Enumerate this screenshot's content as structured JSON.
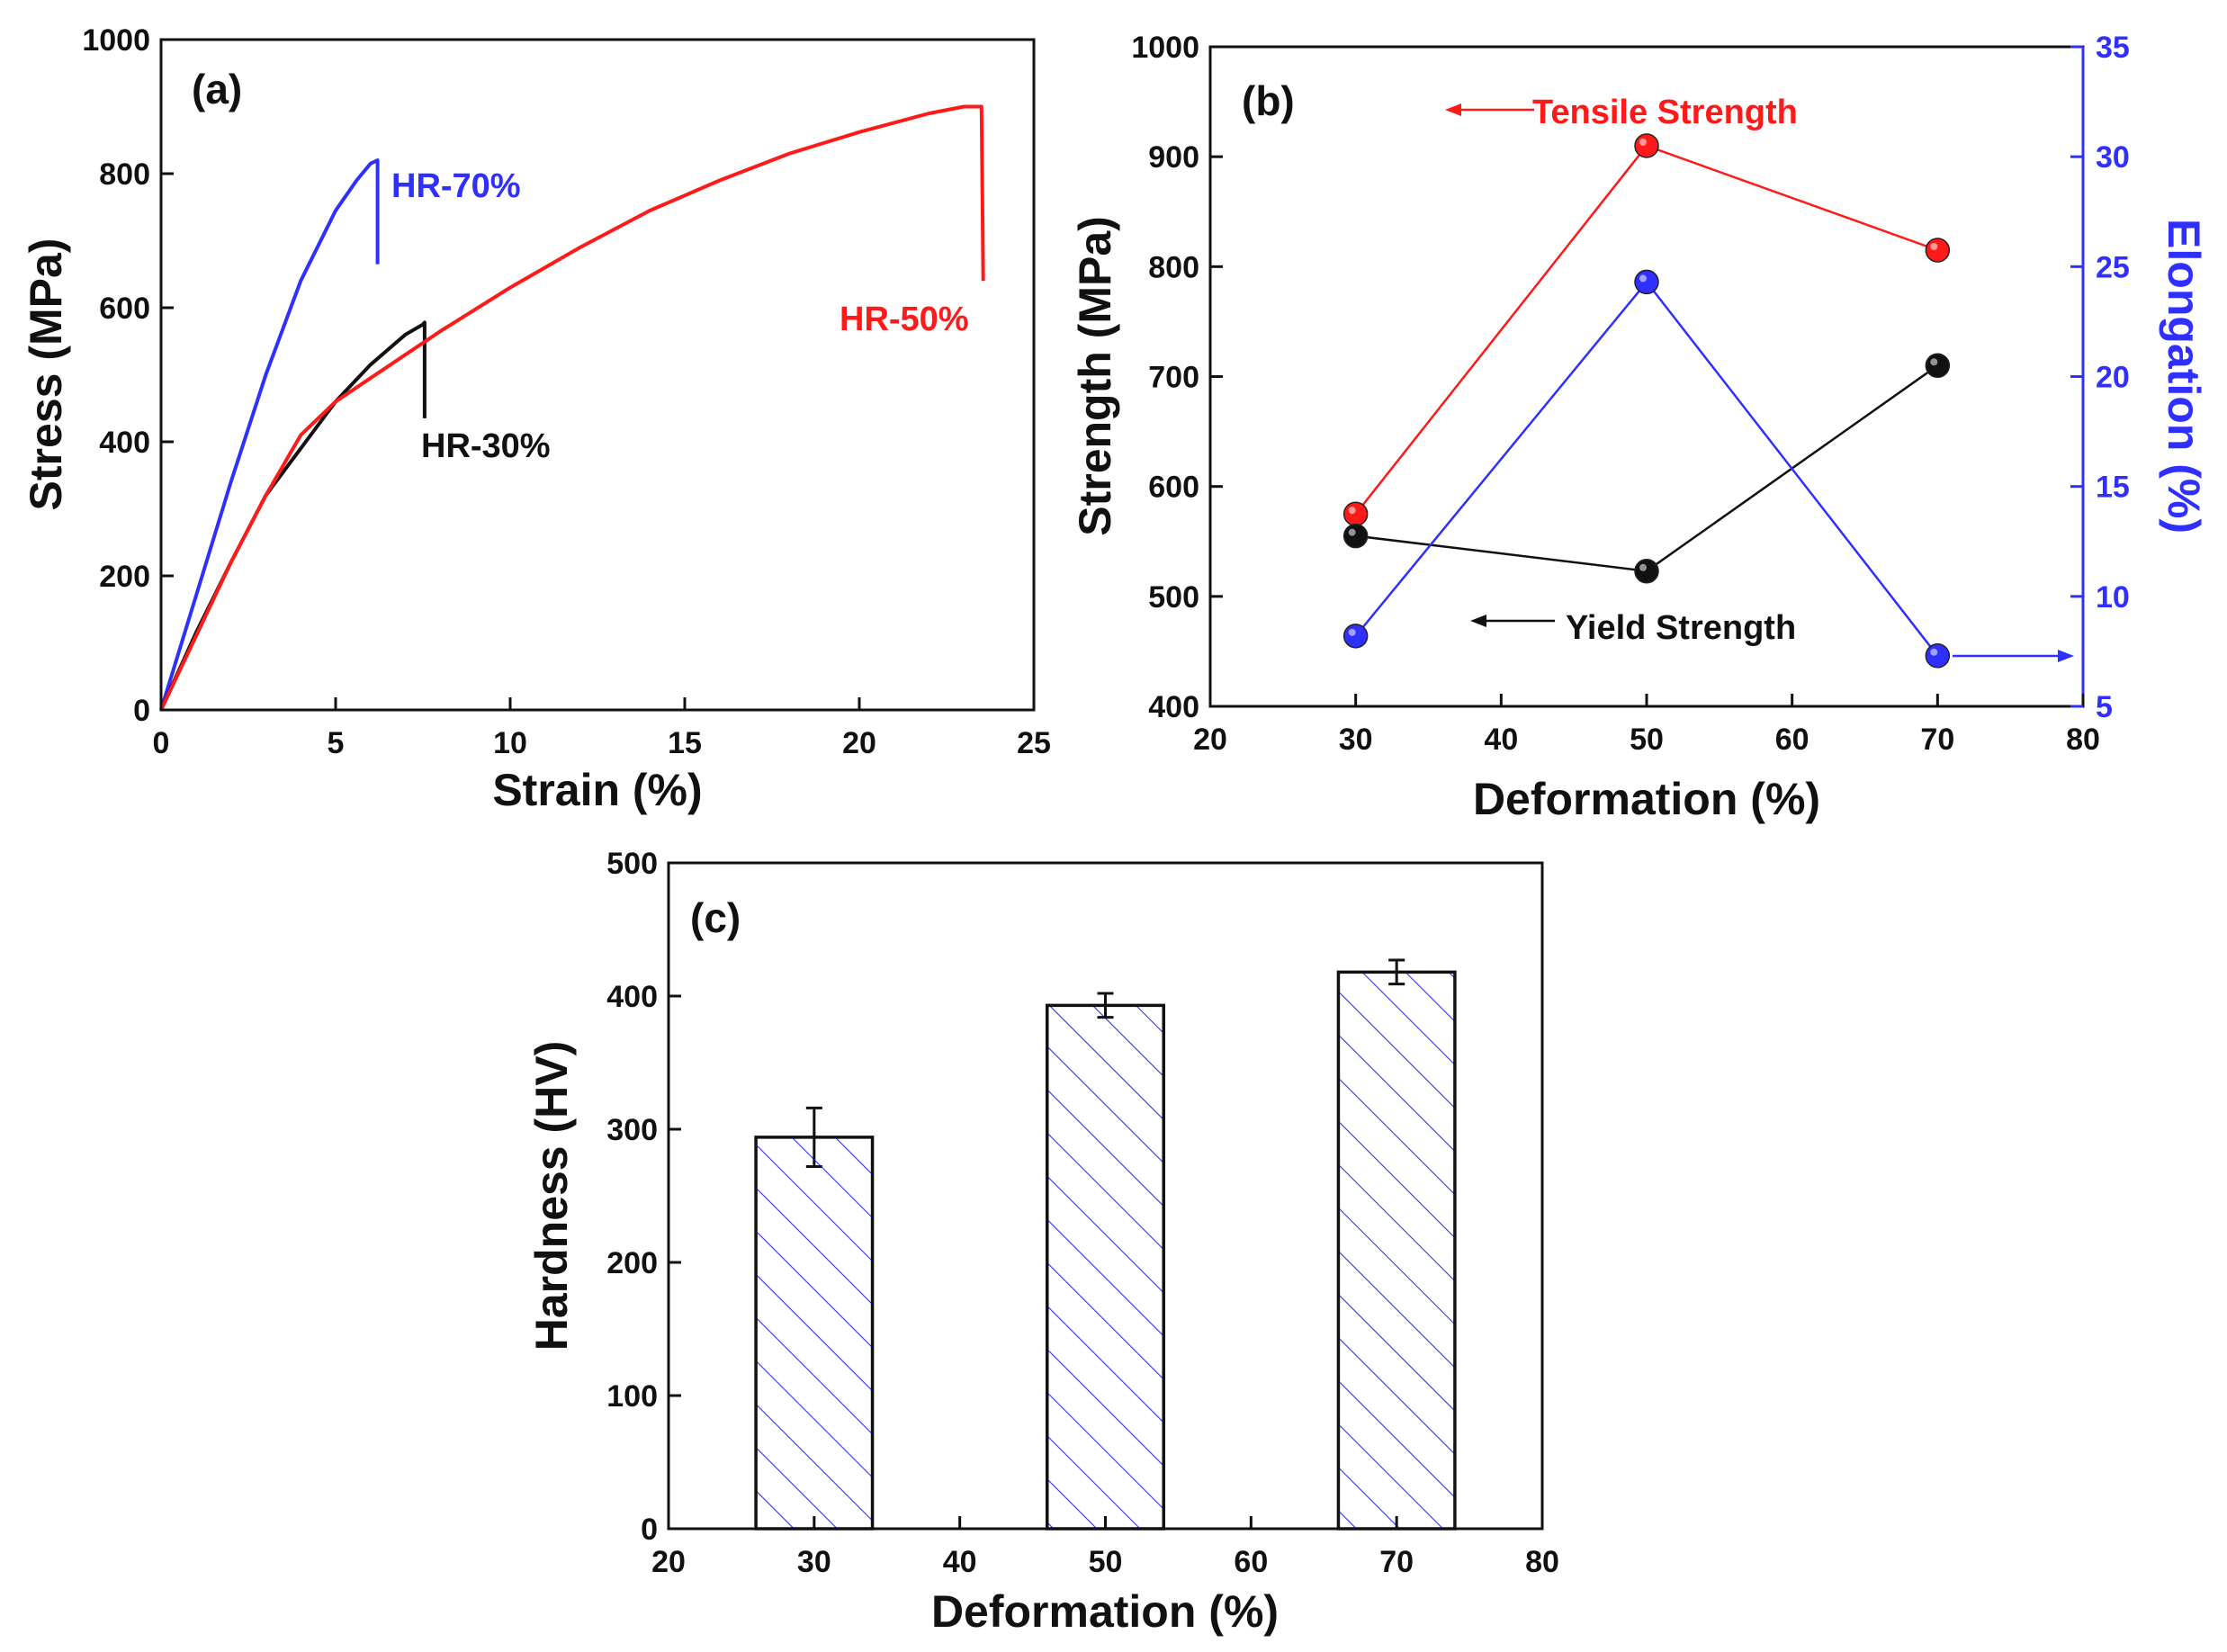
{
  "chart_data": [
    {
      "id": "a",
      "type": "line",
      "panel_label": "(a)",
      "xlabel": "Strain (%)",
      "ylabel": "Stress (MPa)",
      "xlim": [
        0,
        25
      ],
      "ylim": [
        0,
        1000
      ],
      "xticks": [
        "0",
        "5",
        "10",
        "15",
        "20",
        "25"
      ],
      "yticks": [
        "0",
        "200",
        "400",
        "600",
        "800",
        "1000"
      ],
      "series": [
        {
          "name": "HR-70%",
          "color": "#2f2fff",
          "x": [
            0,
            1,
            2,
            3,
            4,
            5,
            5.6,
            6.0,
            6.2,
            6.2
          ],
          "y": [
            0,
            170,
            340,
            500,
            640,
            745,
            790,
            815,
            820,
            665
          ]
        },
        {
          "name": "HR-30%",
          "color": "#111111",
          "x": [
            0,
            1,
            2,
            3,
            4,
            5,
            6,
            7,
            7.5,
            7.55,
            7.55
          ],
          "y": [
            0,
            115,
            220,
            320,
            390,
            460,
            515,
            560,
            575,
            578,
            435
          ]
        },
        {
          "name": "HR-50%",
          "color": "#ff1a1a",
          "x": [
            0,
            1,
            2,
            3,
            4,
            5,
            6,
            8,
            10,
            12,
            14,
            16,
            18,
            20,
            22,
            23,
            23.5,
            23.55
          ],
          "y": [
            0,
            110,
            220,
            320,
            410,
            460,
            495,
            565,
            630,
            690,
            745,
            790,
            830,
            862,
            890,
            900,
            900,
            640
          ]
        }
      ]
    },
    {
      "id": "b",
      "type": "line",
      "panel_label": "(b)",
      "xlabel": "Deformation (%)",
      "ylabel": "Strength (MPa)",
      "y2label": "Elongation (%)",
      "xlim": [
        20,
        80
      ],
      "ylim": [
        400,
        1000
      ],
      "y2lim": [
        5,
        35
      ],
      "x": [
        30,
        50,
        70
      ],
      "xticks": [
        "20",
        "30",
        "40",
        "50",
        "60",
        "70",
        "80"
      ],
      "yticks": [
        "400",
        "500",
        "600",
        "700",
        "800",
        "900",
        "1000"
      ],
      "y2ticks": [
        "5",
        "10",
        "15",
        "20",
        "25",
        "30",
        "35"
      ],
      "series": [
        {
          "name": "Tensile Strength",
          "axis": "left",
          "color": "#ff1a1a",
          "values": [
            575,
            910,
            815
          ]
        },
        {
          "name": "Yield Strength",
          "axis": "left",
          "color": "#111111",
          "values": [
            555,
            523,
            710
          ]
        },
        {
          "name": "Elongation",
          "axis": "right",
          "color": "#2f2fff",
          "values": [
            8.2,
            24.3,
            7.3
          ]
        }
      ],
      "annotations": {
        "tensile": "Tensile Strength",
        "yield": "Yield Strength"
      }
    },
    {
      "id": "c",
      "type": "bar",
      "panel_label": "(c)",
      "xlabel": "Deformation (%)",
      "ylabel": "Hardness (HV)",
      "xlim": [
        20,
        80
      ],
      "ylim": [
        0,
        500
      ],
      "x": [
        30,
        50,
        70
      ],
      "values": [
        294,
        393,
        418
      ],
      "errors": [
        22,
        9,
        9
      ],
      "bar_color": "#2f2fff",
      "xticks": [
        "20",
        "30",
        "40",
        "50",
        "60",
        "70",
        "80"
      ],
      "yticks": [
        "0",
        "100",
        "200",
        "300",
        "400",
        "500"
      ]
    }
  ]
}
